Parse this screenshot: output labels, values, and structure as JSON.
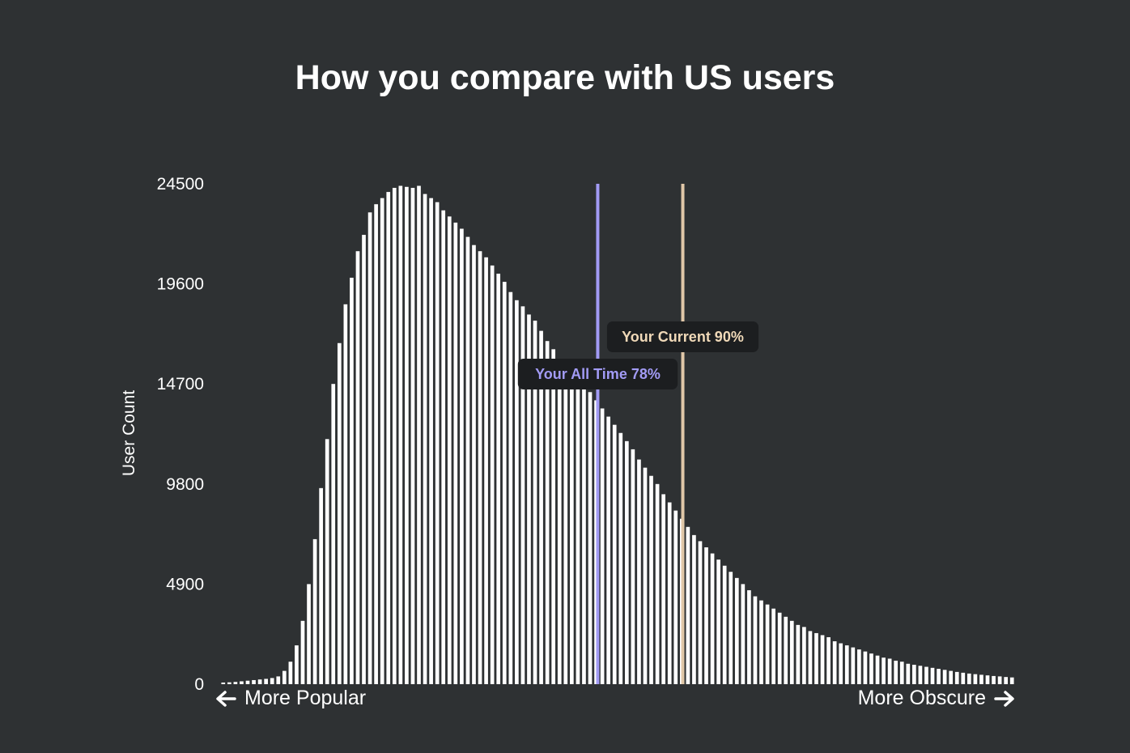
{
  "chart_data": {
    "type": "bar",
    "title": "How you compare with US users",
    "ylabel": "User Count",
    "xlabel": "",
    "ylim": [
      0,
      24500
    ],
    "yticks": [
      0,
      4900,
      9800,
      14700,
      19600,
      24500
    ],
    "grid": false,
    "bar_color": "#ffffff",
    "x_range_percent": [
      0,
      100
    ],
    "series": [
      {
        "values": [
          80,
          90,
          110,
          140,
          170,
          200,
          230,
          260,
          300,
          380,
          650,
          1100,
          1900,
          3100,
          4900,
          7100,
          9600,
          12000,
          14700,
          16700,
          18600,
          19900,
          21200,
          22000,
          23100,
          23500,
          23800,
          24100,
          24300,
          24400,
          24350,
          24300,
          24400,
          24000,
          23800,
          23600,
          23200,
          22900,
          22600,
          22300,
          21900,
          21500,
          21200,
          20900,
          20500,
          20100,
          19700,
          19200,
          18800,
          18500,
          18100,
          17800,
          17300,
          16800,
          16400,
          15900,
          15600,
          15200,
          14900,
          14600,
          14300,
          13900,
          13500,
          13100,
          12700,
          12300,
          11900,
          11500,
          11000,
          10600,
          10200,
          9800,
          9300,
          8900,
          8500,
          8100,
          7700,
          7300,
          7000,
          6700,
          6400,
          6100,
          5800,
          5500,
          5200,
          4900,
          4600,
          4300,
          4100,
          3900,
          3700,
          3500,
          3300,
          3100,
          2900,
          2800,
          2600,
          2500,
          2400,
          2300,
          2100,
          2000,
          1900,
          1800,
          1700,
          1600,
          1500,
          1400,
          1300,
          1250,
          1150,
          1100,
          1000,
          950,
          900,
          850,
          800,
          750,
          700,
          650,
          600,
          560,
          520,
          490,
          460,
          430,
          400,
          380,
          350,
          330
        ]
      }
    ],
    "markers": [
      {
        "label": "Your All Time 78%",
        "percentile": 47.5,
        "color": "#a29bf5",
        "text_color": "#a29bf5"
      },
      {
        "label": "Your Current 90%",
        "percentile": 58.2,
        "color": "#e0c7a8",
        "text_color": "#f0d9b8"
      }
    ],
    "x_left_label": "More Popular",
    "x_right_label": "More Obscure"
  }
}
